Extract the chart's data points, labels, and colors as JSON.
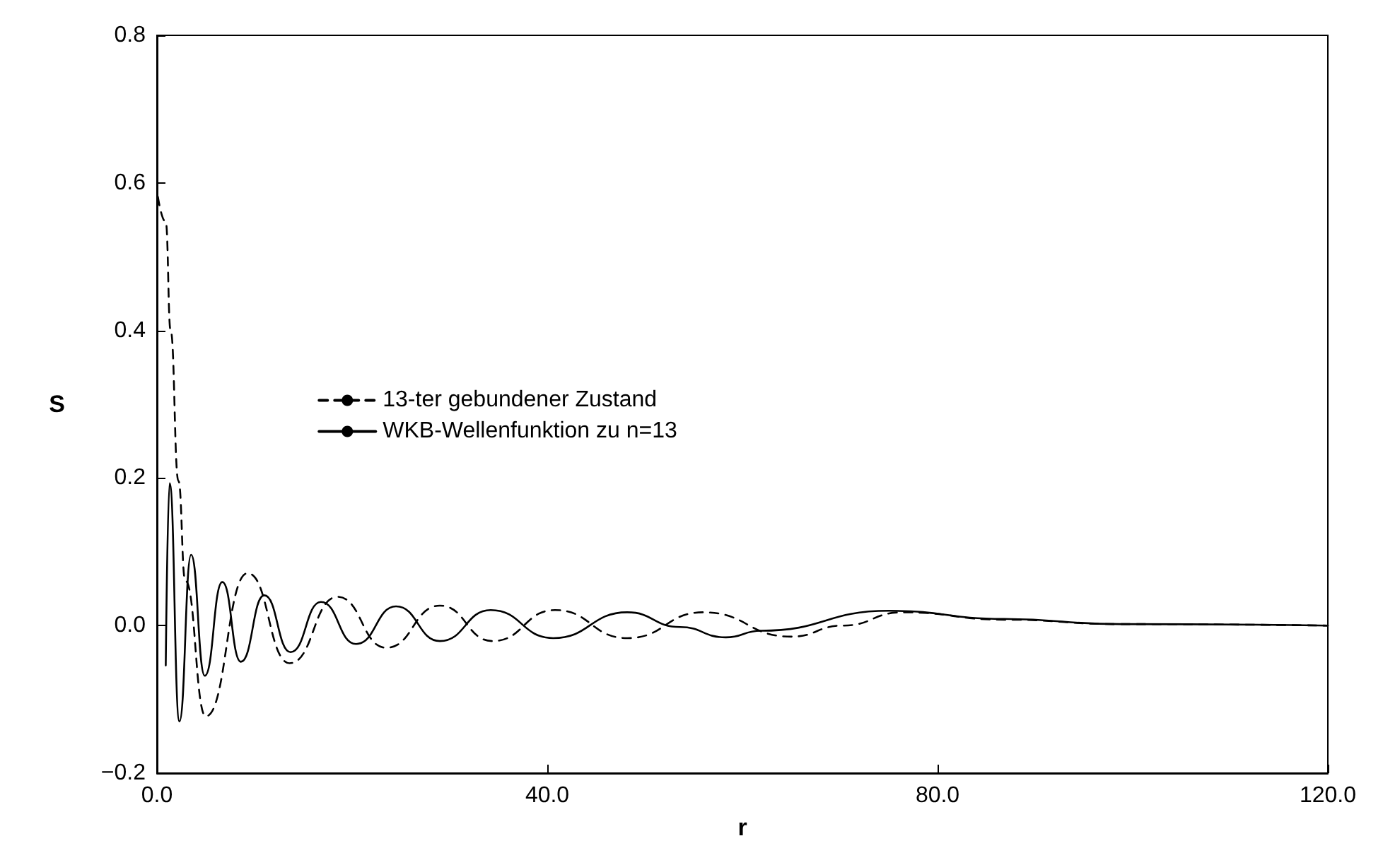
{
  "chart_data": {
    "type": "line",
    "xlabel": "r",
    "ylabel": "S",
    "xlim": [
      0,
      120
    ],
    "ylim": [
      -0.2,
      0.8
    ],
    "xticks": [
      {
        "value": 0,
        "label": "0.0"
      },
      {
        "value": 40,
        "label": "40.0"
      },
      {
        "value": 80,
        "label": "80.0"
      },
      {
        "value": 120,
        "label": "120.0"
      }
    ],
    "yticks": [
      {
        "value": -0.2,
        "label": "−0.2"
      },
      {
        "value": 0,
        "label": "0.0"
      },
      {
        "value": 0.2,
        "label": "0.2"
      },
      {
        "value": 0.4,
        "label": "0.4"
      },
      {
        "value": 0.6,
        "label": "0.6"
      },
      {
        "value": 0.8,
        "label": "0.8"
      }
    ],
    "grid": false,
    "legend": "center left",
    "marker": "none",
    "series": [
      {
        "name": "13-ter gebundener Zustand",
        "color": "#000000",
        "line_style": "dashed",
        "x": [
          0.1,
          0.9,
          1.4,
          2.2,
          2.9,
          5.0,
          9.3,
          13.6,
          18.5,
          23.5,
          29.0,
          34.4,
          40.8,
          48.2,
          56.0,
          65.0,
          70.3,
          76.4,
          86.8,
          98.7,
          120
        ],
        "values": [
          0.581,
          0.547,
          0.4,
          0.196,
          0.061,
          -0.123,
          0.071,
          -0.051,
          0.039,
          -0.03,
          0.027,
          -0.021,
          0.021,
          -0.017,
          0.018,
          -0.015,
          0.0,
          0.018,
          0.008,
          0.002,
          0
        ]
      },
      {
        "name": "WKB-Wellenfunktion zu n=13",
        "color": "#000000",
        "line_style": "solid",
        "x": [
          0.9,
          1.3,
          2.3,
          3.5,
          4.9,
          6.7,
          8.6,
          11.0,
          13.7,
          16.8,
          20.4,
          24.5,
          29.0,
          34.2,
          40.6,
          48.2,
          53.6,
          58.3,
          61.9,
          75.0,
          86.8,
          98.7,
          120
        ],
        "values": [
          -0.054,
          0.193,
          -0.13,
          0.096,
          -0.068,
          0.059,
          -0.049,
          0.041,
          -0.036,
          0.032,
          -0.025,
          0.026,
          -0.021,
          0.021,
          -0.017,
          0.018,
          -0.002,
          -0.016,
          -0.007,
          0.02,
          0.009,
          0.002,
          0
        ]
      }
    ]
  }
}
